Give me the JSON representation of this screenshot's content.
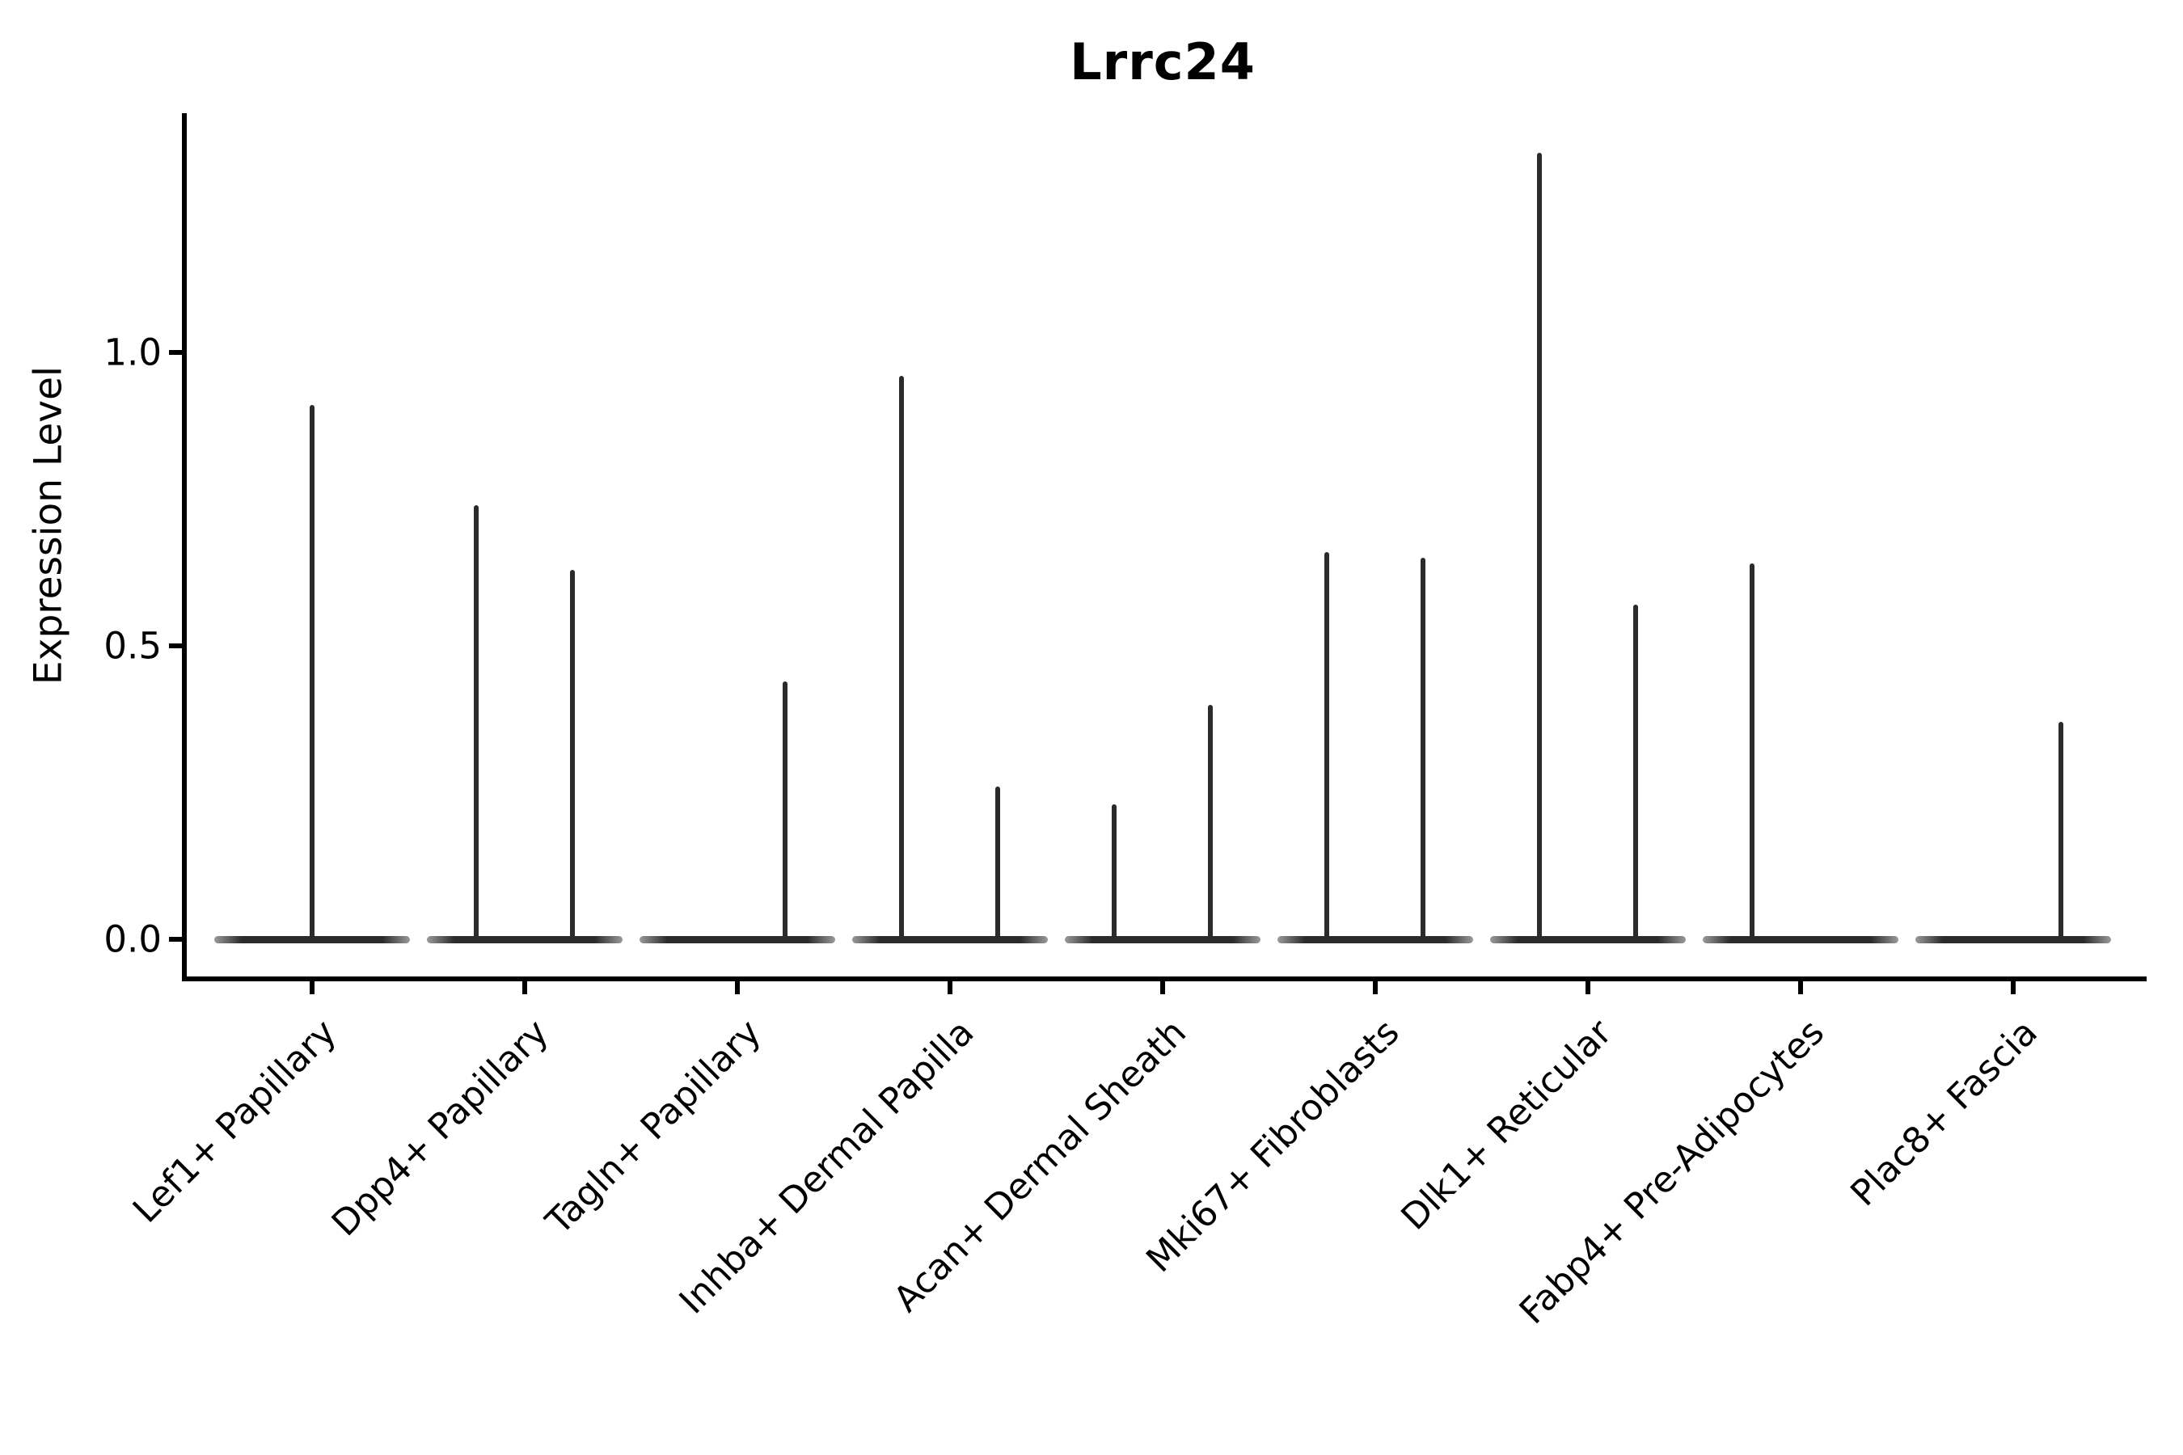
{
  "title": "Lrrc24",
  "y_axis": {
    "label": "Expression Level",
    "tick_labels": [
      "0.0",
      "0.5",
      "1.0"
    ],
    "tick_values": [
      0.0,
      0.5,
      1.0
    ]
  },
  "x_axis": {
    "categories": [
      "Lef1+ Papillary",
      "Dpp4+ Papillary",
      "Tagln+ Papillary",
      "Inhba+ Dermal Papilla",
      "Acan+ Dermal Sheath",
      "Mki67+ Fibroblasts",
      "Dlk1+ Reticular",
      "Fabp4+ Pre-Adipocytes",
      "Plac8+ Fascia"
    ]
  },
  "colors": {
    "violin": "#2b2b2b",
    "axis": "#000000",
    "background": "#ffffff"
  },
  "chart_data": {
    "type": "violin",
    "title": "Lrrc24",
    "xlabel": "",
    "ylabel": "Expression Level",
    "ylim": [
      0,
      1.41
    ],
    "yticks": [
      0.0,
      0.5,
      1.0
    ],
    "grid": false,
    "legend": "none",
    "shape_note": "each violin is flat at expression 0 with a thin vertical spike up to its maximum value",
    "categories": [
      "Lef1+ Papillary",
      "Dpp4+ Papillary",
      "Tagln+ Papillary",
      "Inhba+ Dermal Papilla",
      "Acan+ Dermal Sheath",
      "Mki67+ Fibroblasts",
      "Dlk1+ Reticular",
      "Fabp4+ Pre-Adipocytes",
      "Plac8+ Fascia"
    ],
    "violins": [
      {
        "category": "Lef1+ Papillary",
        "baseline": 0.0,
        "spikes": [
          {
            "group": "center",
            "max_expression": 0.91
          }
        ]
      },
      {
        "category": "Dpp4+ Papillary",
        "baseline": 0.0,
        "spikes": [
          {
            "group": "left",
            "max_expression": 0.74
          },
          {
            "group": "right",
            "max_expression": 0.63
          }
        ]
      },
      {
        "category": "Tagln+ Papillary",
        "baseline": 0.0,
        "spikes": [
          {
            "group": "right",
            "max_expression": 0.44
          }
        ]
      },
      {
        "category": "Inhba+ Dermal Papilla",
        "baseline": 0.0,
        "spikes": [
          {
            "group": "left",
            "max_expression": 0.96
          },
          {
            "group": "right",
            "max_expression": 0.26
          }
        ]
      },
      {
        "category": "Acan+ Dermal Sheath",
        "baseline": 0.0,
        "spikes": [
          {
            "group": "left",
            "max_expression": 0.23
          },
          {
            "group": "right",
            "max_expression": 0.4
          }
        ]
      },
      {
        "category": "Mki67+ Fibroblasts",
        "baseline": 0.0,
        "spikes": [
          {
            "group": "left",
            "max_expression": 0.66
          },
          {
            "group": "right",
            "max_expression": 0.65
          }
        ]
      },
      {
        "category": "Dlk1+ Reticular",
        "baseline": 0.0,
        "spikes": [
          {
            "group": "left",
            "max_expression": 1.34
          },
          {
            "group": "right",
            "max_expression": 0.57
          }
        ]
      },
      {
        "category": "Fabp4+ Pre-Adipocytes",
        "baseline": 0.0,
        "spikes": [
          {
            "group": "left",
            "max_expression": 0.64
          }
        ]
      },
      {
        "category": "Plac8+ Fascia",
        "baseline": 0.0,
        "spikes": [
          {
            "group": "right",
            "max_expression": 0.37
          }
        ]
      }
    ]
  }
}
